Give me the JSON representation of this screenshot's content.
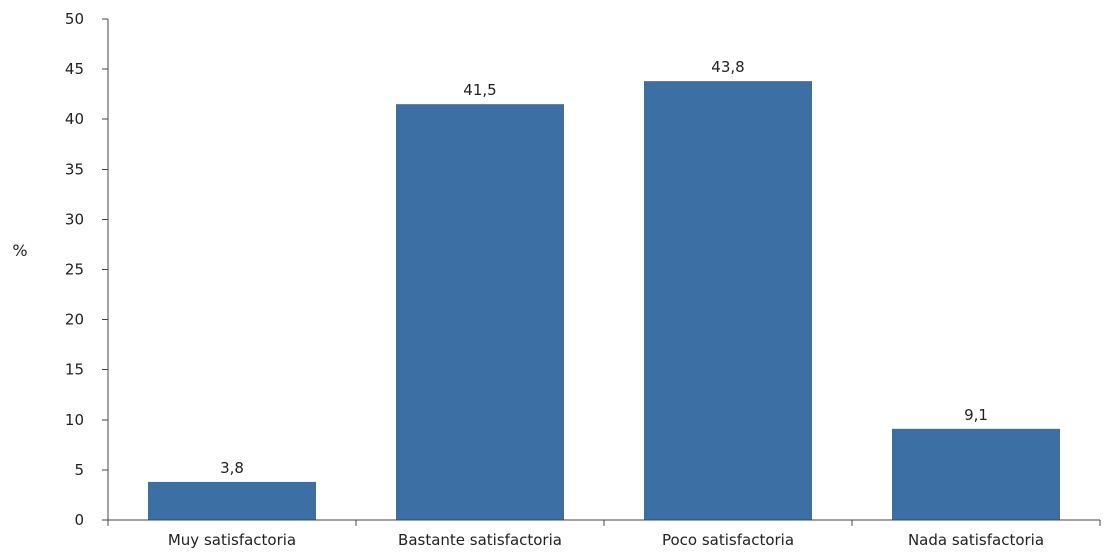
{
  "chart_data": {
    "type": "bar",
    "title": "",
    "xlabel": "",
    "ylabel": "%",
    "categories": [
      "Muy satisfactoria",
      "Bastante satisfactoria",
      "Poco satisfactoria",
      "Nada satisfactoria"
    ],
    "values": [
      3.8,
      41.5,
      43.8,
      9.1
    ],
    "value_labels": [
      "3,8",
      "41,5",
      "43,8",
      "9,1"
    ],
    "ylim": [
      0,
      50
    ],
    "yticks": [
      0,
      5,
      10,
      15,
      20,
      25,
      30,
      35,
      40,
      45,
      50
    ],
    "grid": false,
    "legend": "none",
    "bar_color": "#3c70a4"
  }
}
